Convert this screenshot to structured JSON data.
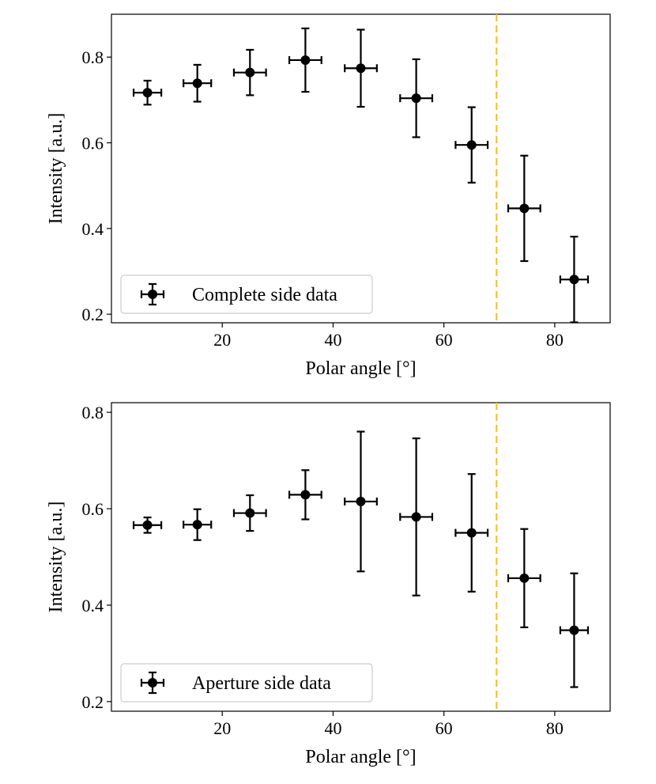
{
  "chart_data": [
    {
      "type": "scatter",
      "xlabel": "Polar angle [°]",
      "ylabel": "Intensity [a.u.]",
      "xlim": [
        0,
        90
      ],
      "ylim": [
        0.18,
        0.9
      ],
      "xticks": [
        20,
        40,
        60,
        80
      ],
      "yticks": [
        0.2,
        0.4,
        0.6,
        0.8
      ],
      "xticklabels": [
        "20",
        "40",
        "60",
        "80"
      ],
      "yticklabels": [
        "0.2",
        "0.4",
        "0.6",
        "0.8"
      ],
      "legend_position": "lower-left",
      "vline": {
        "x": 69.5,
        "color": "#f5c518",
        "style": "dashed"
      },
      "series": [
        {
          "name": "Complete side data",
          "color": "#000000",
          "x": [
            6.5,
            15.5,
            25,
            35,
            45,
            55,
            65,
            74.5,
            83.5
          ],
          "y": [
            0.717,
            0.739,
            0.764,
            0.793,
            0.774,
            0.704,
            0.595,
            0.447,
            0.281
          ],
          "xerr": [
            2.5,
            2.5,
            2.9,
            2.9,
            2.9,
            2.9,
            2.9,
            2.9,
            2.5
          ],
          "yerr": [
            0.028,
            0.043,
            0.053,
            0.074,
            0.09,
            0.091,
            0.088,
            0.123,
            0.1
          ]
        }
      ]
    },
    {
      "type": "scatter",
      "xlabel": "Polar angle [°]",
      "ylabel": "Intensity [a.u.]",
      "xlim": [
        0,
        90
      ],
      "ylim": [
        0.18,
        0.82
      ],
      "xticks": [
        20,
        40,
        60,
        80
      ],
      "yticks": [
        0.2,
        0.4,
        0.6,
        0.8
      ],
      "xticklabels": [
        "20",
        "40",
        "60",
        "80"
      ],
      "yticklabels": [
        "0.2",
        "0.4",
        "0.6",
        "0.8"
      ],
      "legend_position": "lower-left",
      "vline": {
        "x": 69.5,
        "color": "#f5c518",
        "style": "dashed"
      },
      "series": [
        {
          "name": "Aperture side data",
          "color": "#000000",
          "x": [
            6.5,
            15.5,
            25,
            35,
            45,
            55,
            65,
            74.5,
            83.5
          ],
          "y": [
            0.566,
            0.567,
            0.591,
            0.629,
            0.615,
            0.583,
            0.55,
            0.456,
            0.348
          ],
          "xerr": [
            2.5,
            2.5,
            2.9,
            2.9,
            2.9,
            2.9,
            2.9,
            2.9,
            2.5
          ],
          "yerr": [
            0.016,
            0.032,
            0.037,
            0.051,
            0.145,
            0.163,
            0.122,
            0.102,
            0.118
          ]
        }
      ]
    }
  ]
}
